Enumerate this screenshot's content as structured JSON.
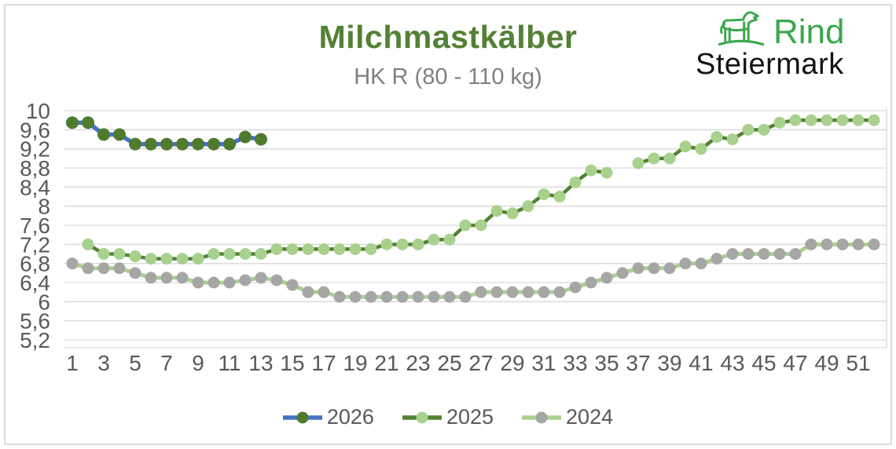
{
  "chart_data": {
    "type": "line",
    "title": "Milchmastkälber",
    "subtitle": "HK R (80 - 110 kg)",
    "xlabel": "",
    "ylabel": "",
    "ylim": [
      5.2,
      10
    ],
    "grid": "horizontal",
    "legend_position": "bottom",
    "x": [
      1,
      2,
      3,
      4,
      5,
      6,
      7,
      8,
      9,
      10,
      11,
      12,
      13,
      14,
      15,
      16,
      17,
      18,
      19,
      20,
      21,
      22,
      23,
      24,
      25,
      26,
      27,
      28,
      29,
      30,
      31,
      32,
      33,
      34,
      35,
      36,
      37,
      38,
      39,
      40,
      41,
      42,
      43,
      44,
      45,
      46,
      47,
      48,
      49,
      50,
      51,
      52
    ],
    "x_tick_labels": [
      "1",
      "3",
      "5",
      "7",
      "9",
      "11",
      "13",
      "15",
      "17",
      "19",
      "21",
      "23",
      "25",
      "27",
      "29",
      "31",
      "33",
      "35",
      "37",
      "39",
      "41",
      "43",
      "45",
      "47",
      "49",
      "51"
    ],
    "y_ticks": [
      {
        "value": 10,
        "label": "10"
      },
      {
        "value": 9.6,
        "label": "9,6"
      },
      {
        "value": 9.2,
        "label": "9,2"
      },
      {
        "value": 8.8,
        "label": "8,8"
      },
      {
        "value": 8.4,
        "label": "8,4"
      },
      {
        "value": 8,
        "label": "8"
      },
      {
        "value": 7.6,
        "label": "7,6"
      },
      {
        "value": 7.2,
        "label": "7,2"
      },
      {
        "value": 6.8,
        "label": "6,8"
      },
      {
        "value": 6.4,
        "label": "6,4"
      },
      {
        "value": 6,
        "label": "6"
      },
      {
        "value": 5.6,
        "label": "5,6"
      },
      {
        "value": 5.2,
        "label": "5,2"
      }
    ],
    "series": [
      {
        "name": "2026",
        "line_color": "#4472C4",
        "marker_color": "#4F7B2F",
        "values": [
          9.75,
          9.75,
          9.5,
          9.5,
          9.3,
          9.3,
          9.3,
          9.3,
          9.3,
          9.3,
          9.3,
          9.45,
          9.4,
          null,
          null,
          null,
          null,
          null,
          null,
          null,
          null,
          null,
          null,
          null,
          null,
          null,
          null,
          null,
          null,
          null,
          null,
          null,
          null,
          null,
          null,
          null,
          null,
          null,
          null,
          null,
          null,
          null,
          null,
          null,
          null,
          null,
          null,
          null,
          null,
          null,
          null,
          null
        ]
      },
      {
        "name": "2025",
        "line_color": "#538135",
        "marker_color": "#A9D18E",
        "values": [
          null,
          7.2,
          7.0,
          7.0,
          6.95,
          6.9,
          6.9,
          6.9,
          6.9,
          7.0,
          7.0,
          7.0,
          7.0,
          7.1,
          7.1,
          7.1,
          7.1,
          7.1,
          7.1,
          7.1,
          7.2,
          7.2,
          7.2,
          7.3,
          7.3,
          7.6,
          7.6,
          7.9,
          7.85,
          8.0,
          8.25,
          8.2,
          8.5,
          8.75,
          8.7,
          null,
          8.9,
          9.0,
          9.0,
          9.25,
          9.2,
          9.45,
          9.4,
          9.6,
          9.6,
          9.75,
          9.8,
          9.8,
          9.8,
          9.8,
          9.8,
          9.8
        ]
      },
      {
        "name": "2024",
        "line_color": "#A9D18E",
        "marker_color": "#A6A6A6",
        "values": [
          6.8,
          6.7,
          6.7,
          6.7,
          6.6,
          6.5,
          6.5,
          6.5,
          6.4,
          6.4,
          6.4,
          6.45,
          6.5,
          6.45,
          6.35,
          6.2,
          6.2,
          6.1,
          6.1,
          6.1,
          6.1,
          6.1,
          6.1,
          6.1,
          6.1,
          6.1,
          6.2,
          6.2,
          6.2,
          6.2,
          6.2,
          6.2,
          6.3,
          6.4,
          6.5,
          6.6,
          6.7,
          6.7,
          6.7,
          6.8,
          6.8,
          6.9,
          7.0,
          7.0,
          7.0,
          7.0,
          7.0,
          7.2,
          7.2,
          7.2,
          7.2,
          7.2
        ]
      }
    ]
  },
  "logo": {
    "line1": "Rind",
    "line2": "Steiermark",
    "icon": "cattle-icon",
    "green": "#3AA84C",
    "dark": "#141414"
  },
  "style": {
    "title_color": "#538135",
    "subtitle_color": "#7F7F7F",
    "tick_color": "#595959",
    "grid_color": "#D9D9D9"
  }
}
